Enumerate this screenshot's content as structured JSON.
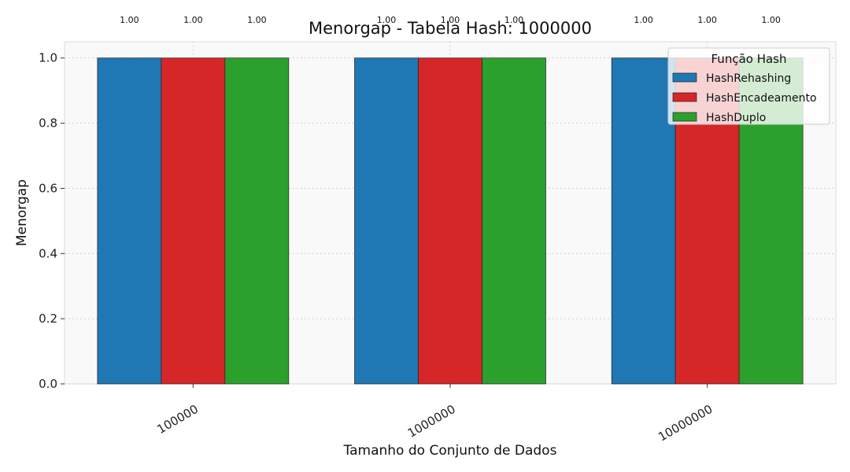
{
  "chart_data": {
    "type": "bar",
    "title": "Menorgap - Tabela Hash: 1000000",
    "xlabel": "Tamanho do Conjunto de Dados",
    "ylabel": "Menorgap",
    "categories": [
      "100000",
      "1000000",
      "10000000"
    ],
    "series": [
      {
        "name": "HashRehashing",
        "values": [
          1.0,
          1.0,
          1.0
        ],
        "color": "#1f77b4"
      },
      {
        "name": "HashEncadeamento",
        "values": [
          1.0,
          1.0,
          1.0
        ],
        "color": "#d62728"
      },
      {
        "name": "HashDuplo",
        "values": [
          1.0,
          1.0,
          1.0
        ],
        "color": "#2ca02c"
      }
    ],
    "data_labels": [
      [
        "1.00",
        "1.00",
        "1.00"
      ],
      [
        "1.00",
        "1.00",
        "1.00"
      ],
      [
        "1.00",
        "1.00",
        "1.00"
      ]
    ],
    "ylim": [
      0,
      1.05
    ],
    "yticks": [
      "0.0",
      "0.2",
      "0.4",
      "0.6",
      "0.8",
      "1.0"
    ],
    "grid": true,
    "legend": {
      "title": "Função Hash",
      "placement": "top-right"
    }
  }
}
